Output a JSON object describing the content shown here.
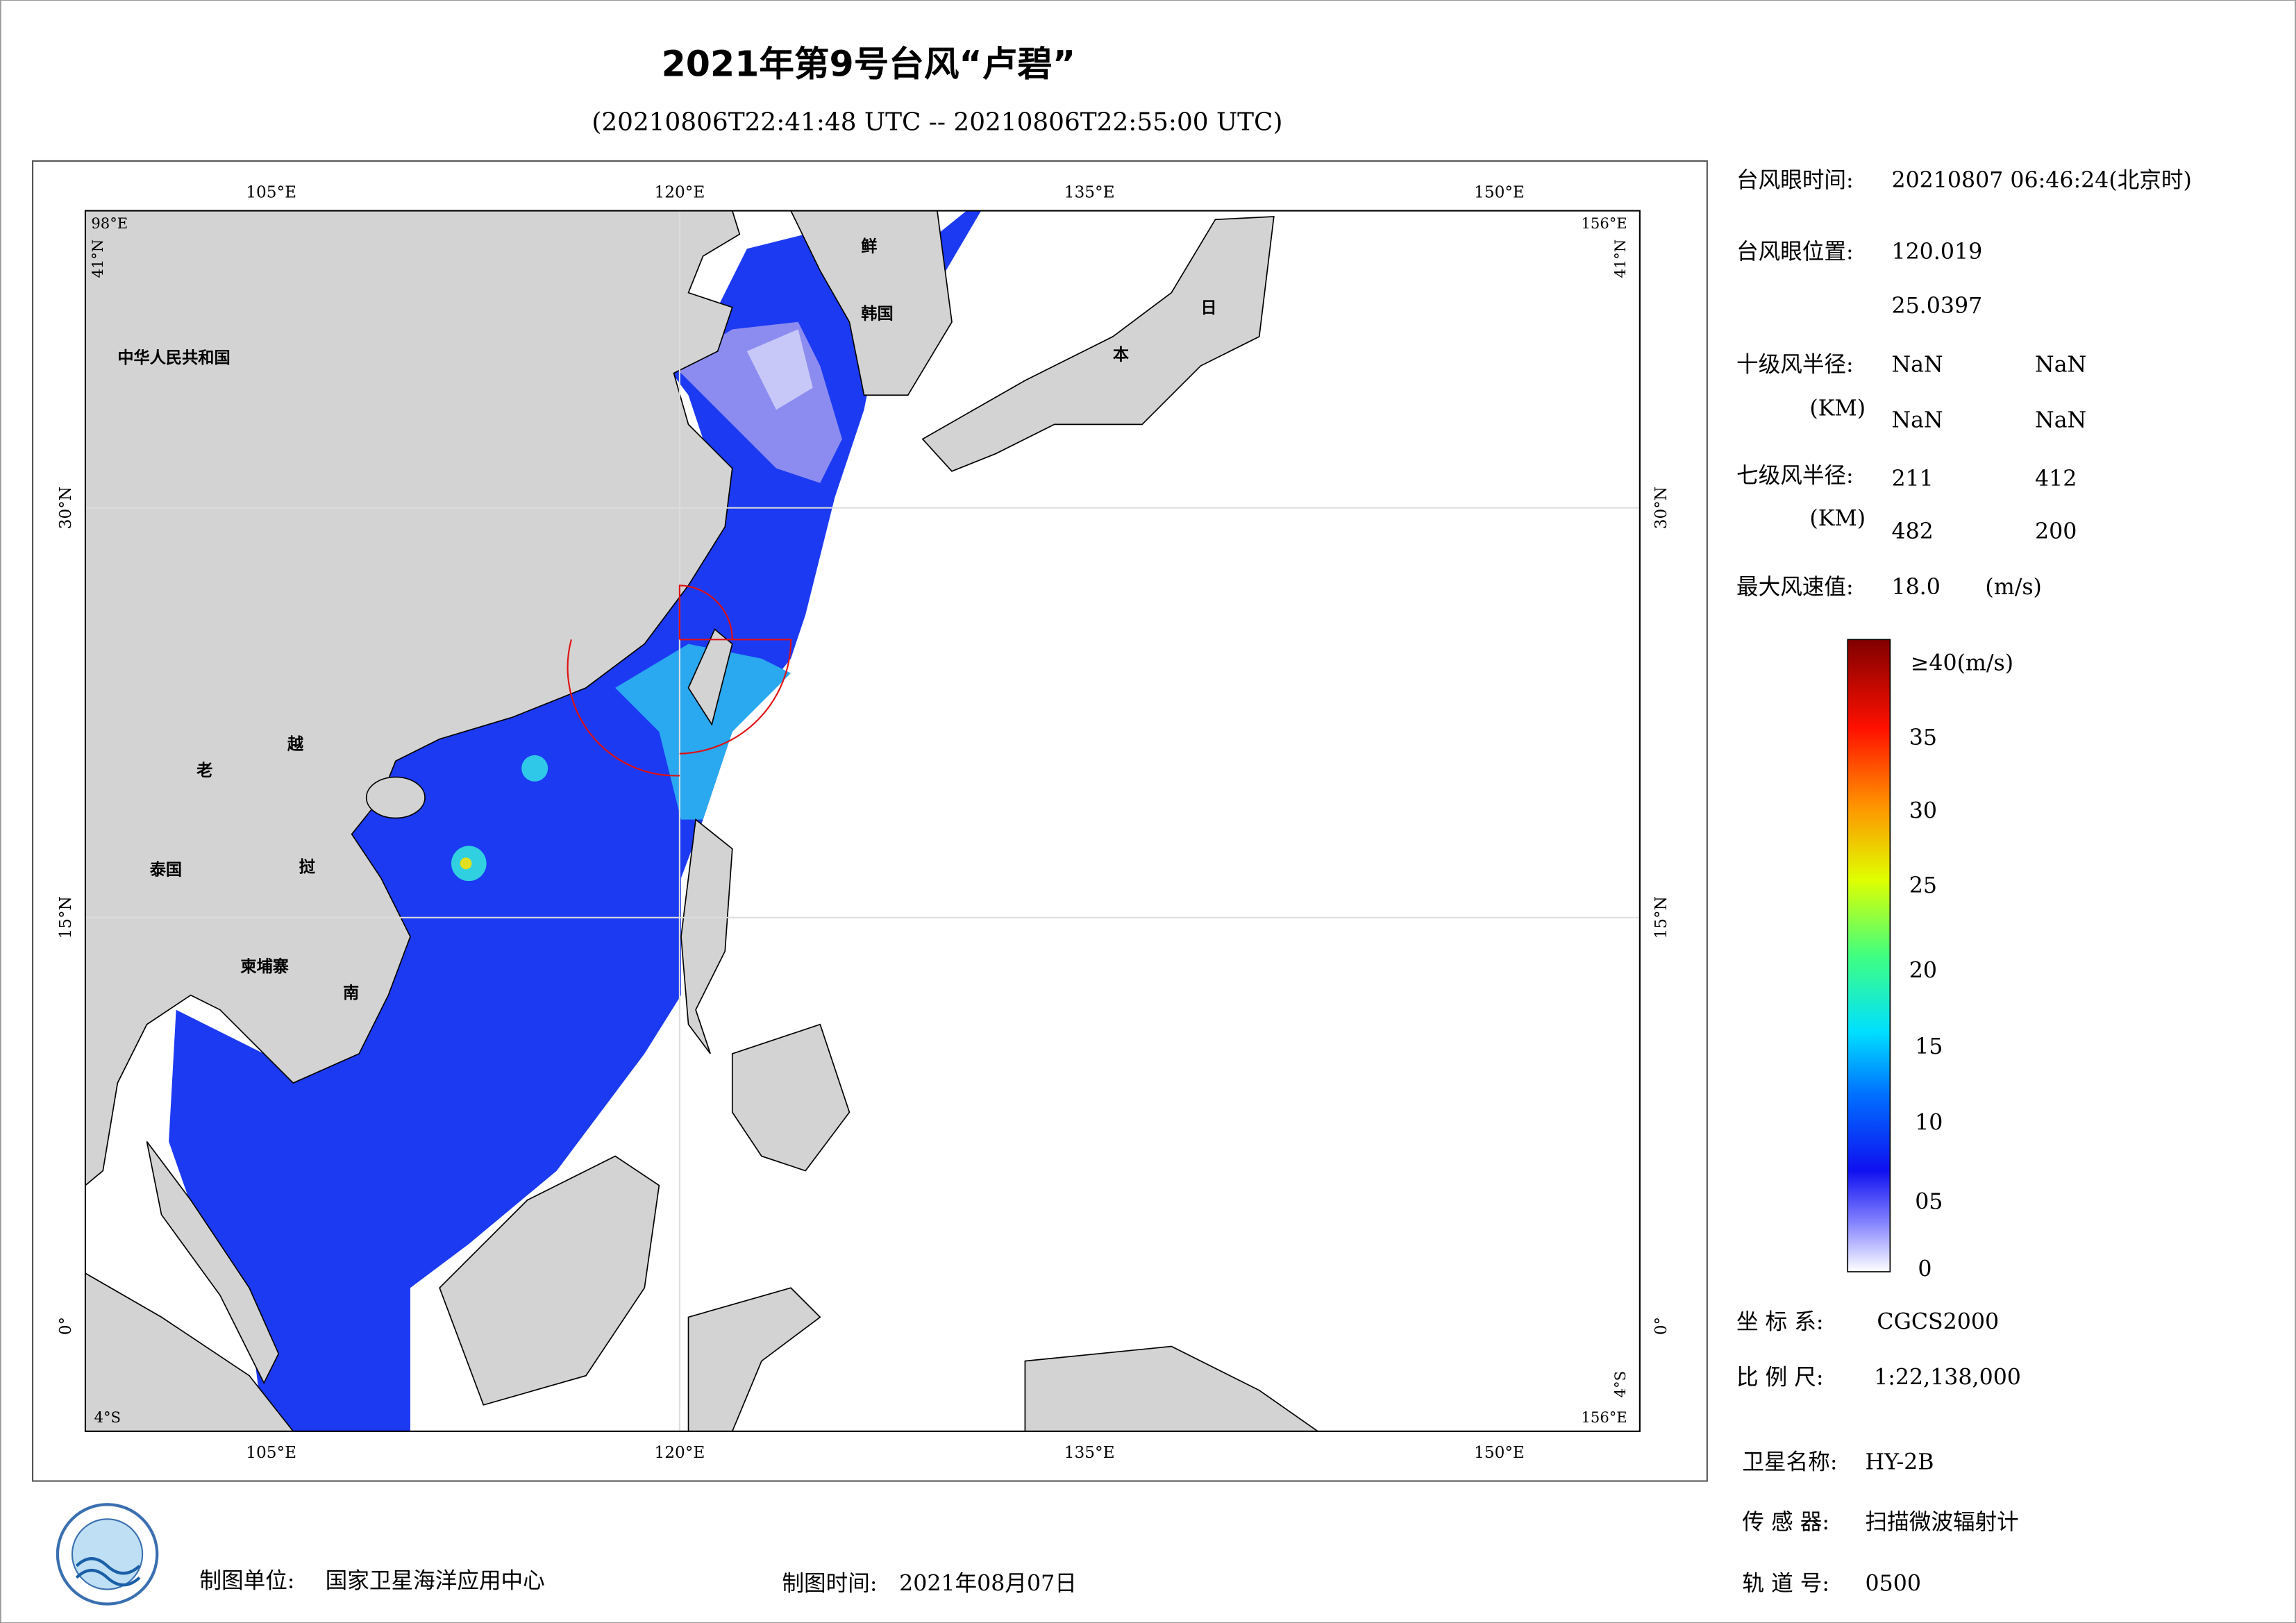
{
  "title": "2021年第9号台风“卢碧”",
  "subtitle": "(20210806T22:41:48 UTC -- 20210806T22:55:00 UTC)",
  "map": {
    "top_labels": [
      "105°E",
      "120°E",
      "135°E",
      "150°E"
    ],
    "bottom_labels": [
      "105°E",
      "120°E",
      "135°E",
      "150°E"
    ],
    "left_labels": [
      "30°N",
      "15°N",
      "0°"
    ],
    "right_labels": [
      "30°N",
      "15°N",
      "0°"
    ],
    "corner_labels": {
      "top_left_lon": "98°E",
      "top_left_lat": "41°N",
      "top_right_lon": "156°E",
      "top_right_lat": "41°N",
      "bottom_left_lat": "4°S",
      "bottom_right_lon": "156°E",
      "bottom_right_lat": "4°S"
    },
    "place_labels": [
      "中华人民共和国",
      "老",
      "越",
      "泰国",
      "挝",
      "柬埔寨",
      "南",
      "韩国",
      "鲜",
      "日",
      "本"
    ]
  },
  "info": {
    "eye_time_label": "台风眼时间:",
    "eye_time": "20210807 06:46:24(北京时)",
    "eye_position_label": "台风眼位置:",
    "eye_lon": "120.019",
    "eye_lat": "25.0397",
    "r10_label": "十级风半径:",
    "r10_unit": "(KM)",
    "r10_values": [
      "NaN",
      "NaN",
      "NaN",
      "NaN"
    ],
    "r7_label": "七级风半径:",
    "r7_unit": "(KM)",
    "r7_values": [
      "211",
      "412",
      "482",
      "200"
    ],
    "max_wind_label": "最大风速值:",
    "max_wind": "18.0",
    "max_wind_unit": "(m/s)"
  },
  "colorbar": {
    "top_label": "≥40(m/s)",
    "ticks": [
      "35",
      "30",
      "25",
      "20",
      "15",
      "10",
      "05",
      "0"
    ]
  },
  "meta": {
    "crs_label": "坐 标 系:",
    "crs": "CGCS2000",
    "scale_label": "比 例 尺:",
    "scale": "1:22,138,000",
    "satellite_label": "卫星名称:",
    "satellite": "HY-2B",
    "sensor_label": "传 感 器:",
    "sensor": "扫描微波辐射计",
    "orbit_label": "轨 道 号:",
    "orbit": "0500"
  },
  "footer": {
    "unit_label": "制图单位:",
    "unit": "国家卫星海洋应用中心",
    "date_label": "制图时间:",
    "date": "2021年08月07日"
  }
}
